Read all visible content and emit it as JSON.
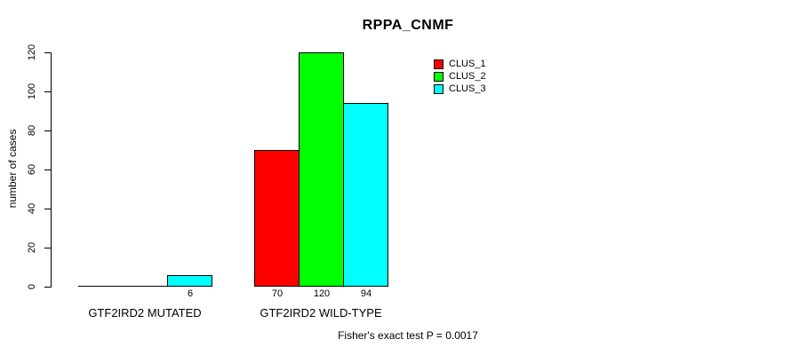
{
  "chart_data": {
    "type": "bar",
    "title": "RPPA_CNMF",
    "ylabel": "number of cases",
    "footer": "Fisher's exact test P = 0.0017",
    "categories": [
      "GTF2IRD2 MUTATED",
      "GTF2IRD2 WILD-TYPE"
    ],
    "series": [
      {
        "name": "CLUS_1",
        "color": "#ff0000",
        "values": [
          0,
          70
        ]
      },
      {
        "name": "CLUS_2",
        "color": "#00ff00",
        "values": [
          0,
          120
        ]
      },
      {
        "name": "CLUS_3",
        "color": "#00ffff",
        "values": [
          6,
          94
        ]
      }
    ],
    "ylim": [
      0,
      120
    ],
    "yticks": [
      0,
      20,
      40,
      60,
      80,
      100,
      120
    ],
    "grid": false,
    "legend_position": "top-right",
    "bar_labels_shown": [
      "6",
      "70",
      "120",
      "94"
    ],
    "axis_color": "#000000",
    "background_color": "#ffffff"
  }
}
